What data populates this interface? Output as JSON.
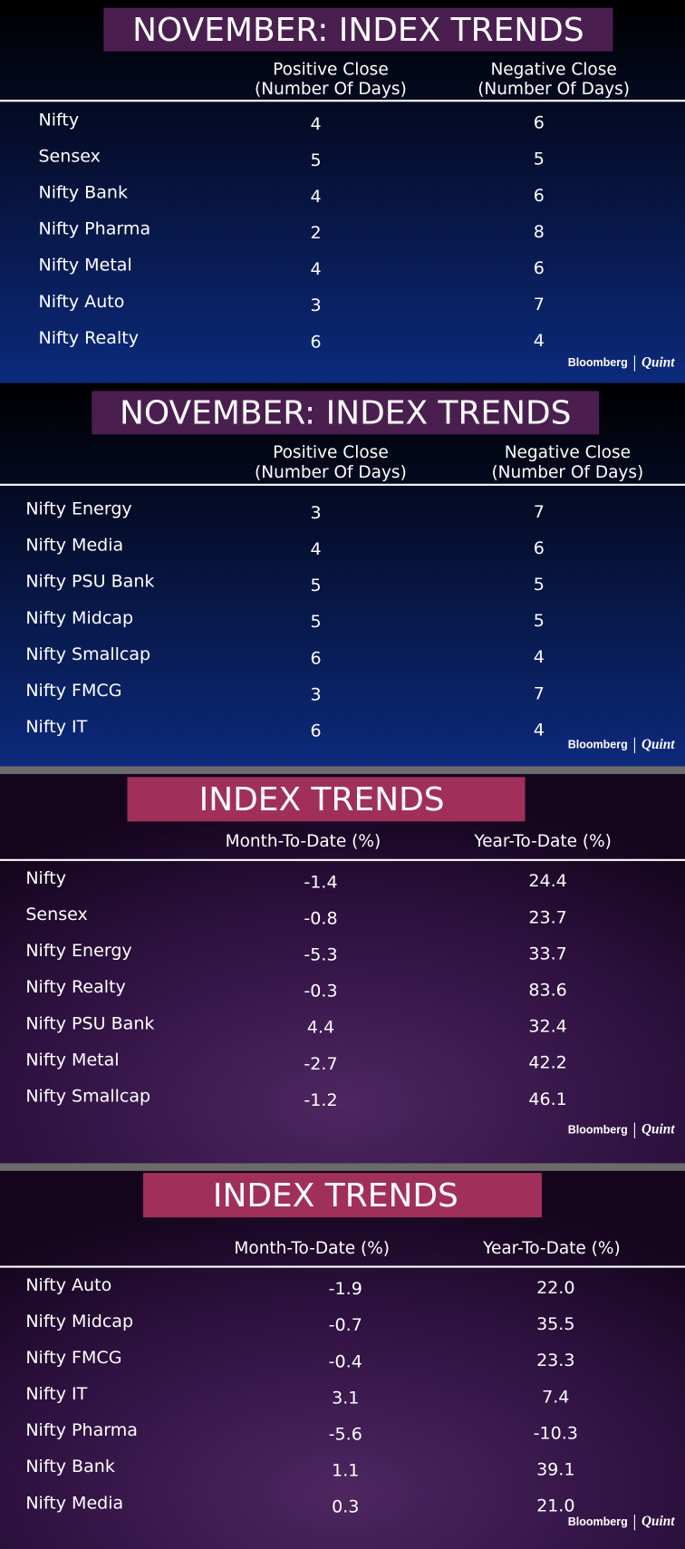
{
  "panels": [
    {
      "title": "NOVEMBER: INDEX TRENDS",
      "headers": [
        [
          "Positive Close",
          "(Number Of Days)"
        ],
        [
          "Negative Close",
          "(Number Of Days)"
        ]
      ],
      "rows": [
        [
          "Nifty",
          "4",
          "6"
        ],
        [
          "Sensex",
          "5",
          "5"
        ],
        [
          "Nifty Bank",
          "4",
          "6"
        ],
        [
          "Nifty Pharma",
          "2",
          "8"
        ],
        [
          "Nifty Metal",
          "4",
          "6"
        ],
        [
          "Nifty Auto",
          "3",
          "7"
        ],
        [
          "Nifty Realty",
          "6",
          "4"
        ]
      ],
      "brand": [
        "Bloomberg",
        "Quint"
      ]
    },
    {
      "title": "NOVEMBER: INDEX TRENDS",
      "headers": [
        [
          "Positive Close",
          "(Number Of Days)"
        ],
        [
          "Negative Close",
          "(Number Of Days)"
        ]
      ],
      "rows": [
        [
          "Nifty Energy",
          "3",
          "7"
        ],
        [
          "Nifty Media",
          "4",
          "6"
        ],
        [
          "Nifty PSU Bank",
          "5",
          "5"
        ],
        [
          "Nifty Midcap",
          "5",
          "5"
        ],
        [
          "Nifty Smallcap",
          "6",
          "4"
        ],
        [
          "Nifty FMCG",
          "3",
          "7"
        ],
        [
          "Nifty IT",
          "6",
          "4"
        ]
      ],
      "brand": [
        "Bloomberg",
        "Quint"
      ]
    },
    {
      "title": "INDEX TRENDS",
      "headers": [
        [
          "Month-To-Date (%)"
        ],
        [
          "Year-To-Date (%)"
        ]
      ],
      "rows": [
        [
          "Nifty",
          "-1.4",
          "24.4"
        ],
        [
          "Sensex",
          "-0.8",
          "23.7"
        ],
        [
          "Nifty Energy",
          "-5.3",
          "33.7"
        ],
        [
          "Nifty Realty",
          "-0.3",
          "83.6"
        ],
        [
          "Nifty PSU Bank",
          "4.4",
          "32.4"
        ],
        [
          "Nifty Metal",
          "-2.7",
          "42.2"
        ],
        [
          "Nifty Smallcap",
          "-1.2",
          "46.1"
        ]
      ],
      "brand": [
        "Bloomberg",
        "Quint"
      ]
    },
    {
      "title": "INDEX TRENDS",
      "headers": [
        [
          "Month-To-Date (%)"
        ],
        [
          "Year-To-Date (%)"
        ]
      ],
      "rows": [
        [
          "Nifty Auto",
          "-1.9",
          "22.0"
        ],
        [
          "Nifty Midcap",
          "-0.7",
          "35.5"
        ],
        [
          "Nifty FMCG",
          "-0.4",
          "23.3"
        ],
        [
          "Nifty IT",
          "3.1",
          "7.4"
        ],
        [
          "Nifty Pharma",
          "-5.6",
          "-10.3"
        ],
        [
          "Nifty Bank",
          "1.1",
          "39.1"
        ],
        [
          "Nifty Media",
          "0.3",
          "21.0"
        ]
      ],
      "brand": [
        "Bloomberg",
        "Quint"
      ]
    }
  ]
}
